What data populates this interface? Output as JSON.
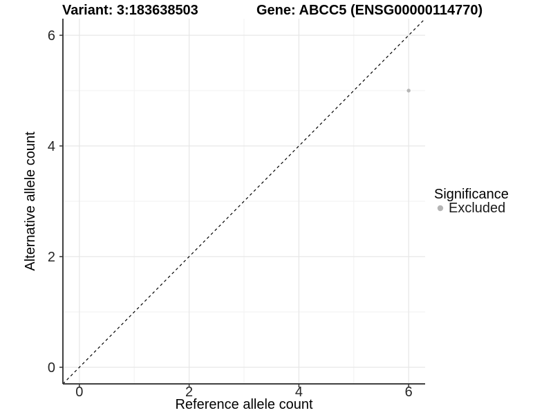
{
  "chart_data": {
    "type": "scatter",
    "titles": {
      "left": "Variant: 3:183638503",
      "right": "Gene: ABCC5 (ENSG00000114770)"
    },
    "xlabel": "Reference allele count",
    "ylabel": "Alternative allele count",
    "xlim": [
      -0.3,
      6.3
    ],
    "ylim": [
      -0.3,
      6.3
    ],
    "x_major_ticks": [
      0,
      2,
      4,
      6
    ],
    "y_major_ticks": [
      0,
      2,
      4,
      6
    ],
    "x_minor_ticks": [
      1,
      3,
      5
    ],
    "y_minor_ticks": [
      1,
      3,
      5
    ],
    "grid": "major+minor",
    "reference_line": {
      "type": "identity_y_equals_x",
      "style": "dashed",
      "color": "#000000",
      "span": [
        -0.3,
        6.3
      ]
    },
    "series": [
      {
        "name": "Excluded",
        "color": "#b5b5b5",
        "points": [
          {
            "x": 6,
            "y": 5
          }
        ]
      }
    ],
    "legend": {
      "title": "Significance",
      "position": "right",
      "entries": [
        {
          "label": "Excluded",
          "color": "#b5b5b5",
          "marker": "circle"
        }
      ]
    }
  },
  "colors": {
    "background": "#ffffff",
    "panel_background": "#ffffff",
    "grid_major": "#e6e6e6",
    "grid_minor": "#f2f2f2",
    "axis_line": "#3f3f3f",
    "tick_mark": "#333333",
    "tick_label": "#262626",
    "point": "#b5b5b5"
  }
}
